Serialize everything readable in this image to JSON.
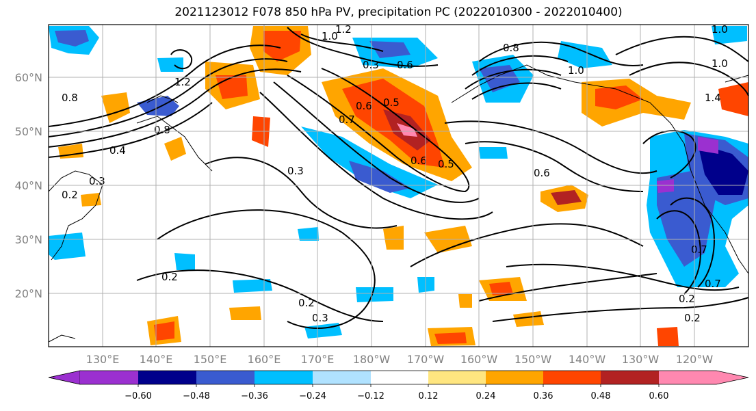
{
  "title": "2021123012 F078 850 hPa PV, precipitation PC (2022010300 - 2022010400)",
  "lat_labels": [
    "60°N",
    "50°N",
    "40°N",
    "30°N",
    "20°N"
  ],
  "lon_labels": [
    "130°E",
    "140°E",
    "150°E",
    "160°E",
    "170°E",
    "180°W",
    "170°W",
    "160°W",
    "150°W",
    "140°W",
    "130°W",
    "120°W"
  ],
  "colorbar": {
    "ticks": [
      "−0.60",
      "−0.48",
      "−0.36",
      "−0.24",
      "−0.12",
      "0.12",
      "0.24",
      "0.36",
      "0.48",
      "0.60"
    ],
    "colors": [
      "#9b30d0",
      "#00008b",
      "#3a5bd0",
      "#00bfff",
      "#b0e2ff",
      "#ffffff",
      "#ffe680",
      "#ffa500",
      "#ff4500",
      "#b22222",
      "#ff88b0"
    ]
  },
  "contour_labels": [
    "1.0",
    "1.2",
    "0.8",
    "0.8",
    "1.0",
    "1.2",
    "0.7",
    "0.6",
    "0.5",
    "0.6",
    "0.6",
    "0.4",
    "0.2",
    "0.3",
    "0.3",
    "0.2",
    "0.2",
    "0.2",
    "0.7",
    "0.7",
    "0.3",
    "0.6",
    "1.0",
    "1.4",
    "1.0",
    "0.3",
    "0.8",
    "0.2",
    "0.5"
  ]
}
